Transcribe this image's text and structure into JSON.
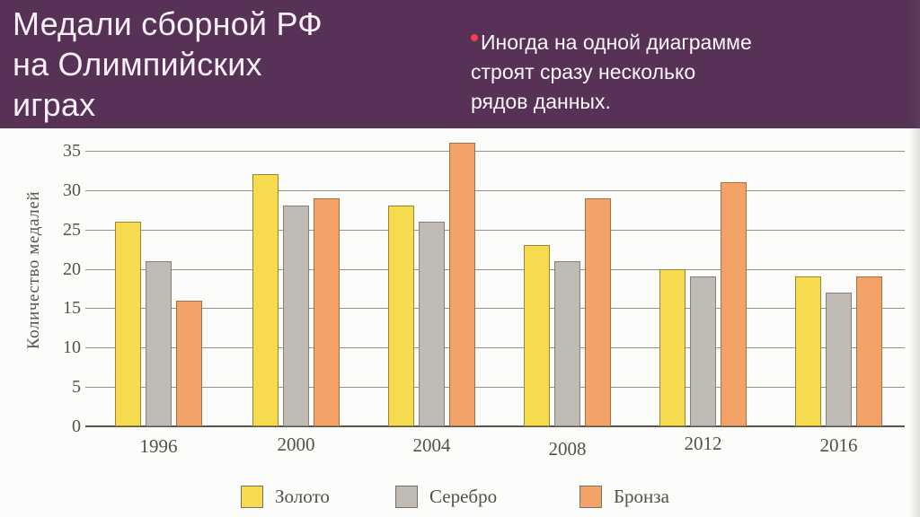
{
  "slide": {
    "title": {
      "lines": [
        "Медали сборной РФ",
        "на Олимпийских",
        "играх"
      ]
    },
    "bullet": {
      "lines": [
        "Иногда на одной диаграмме",
        "строят сразу несколько",
        "рядов данных."
      ]
    },
    "colors": {
      "header_bg": "#573156",
      "title_text": "#f7f0f6",
      "bullet_dot": "#e8434f"
    }
  },
  "chart_data": {
    "type": "bar",
    "title": "",
    "xlabel": "",
    "ylabel": "Количество медалей",
    "categories": [
      "1996",
      "2000",
      "2004",
      "2008",
      "2012",
      "2016"
    ],
    "series": [
      {
        "name": "Золото",
        "color": "#f6db4e",
        "border_color": "#9c8136",
        "values": [
          26,
          32,
          28,
          23,
          20,
          19
        ]
      },
      {
        "name": "Серебро",
        "color": "#c1bbb5",
        "border_color": "#85807a",
        "values": [
          21,
          28,
          26,
          21,
          19,
          17
        ]
      },
      {
        "name": "Бронза",
        "color": "#f3a367",
        "border_color": "#a76f3f",
        "values": [
          16,
          29,
          36,
          29,
          31,
          19
        ]
      }
    ],
    "ylim": [
      0,
      35
    ],
    "yticks": [
      0,
      5,
      10,
      15,
      20,
      25,
      30,
      35
    ],
    "grid": true,
    "legend_position": "bottom"
  }
}
